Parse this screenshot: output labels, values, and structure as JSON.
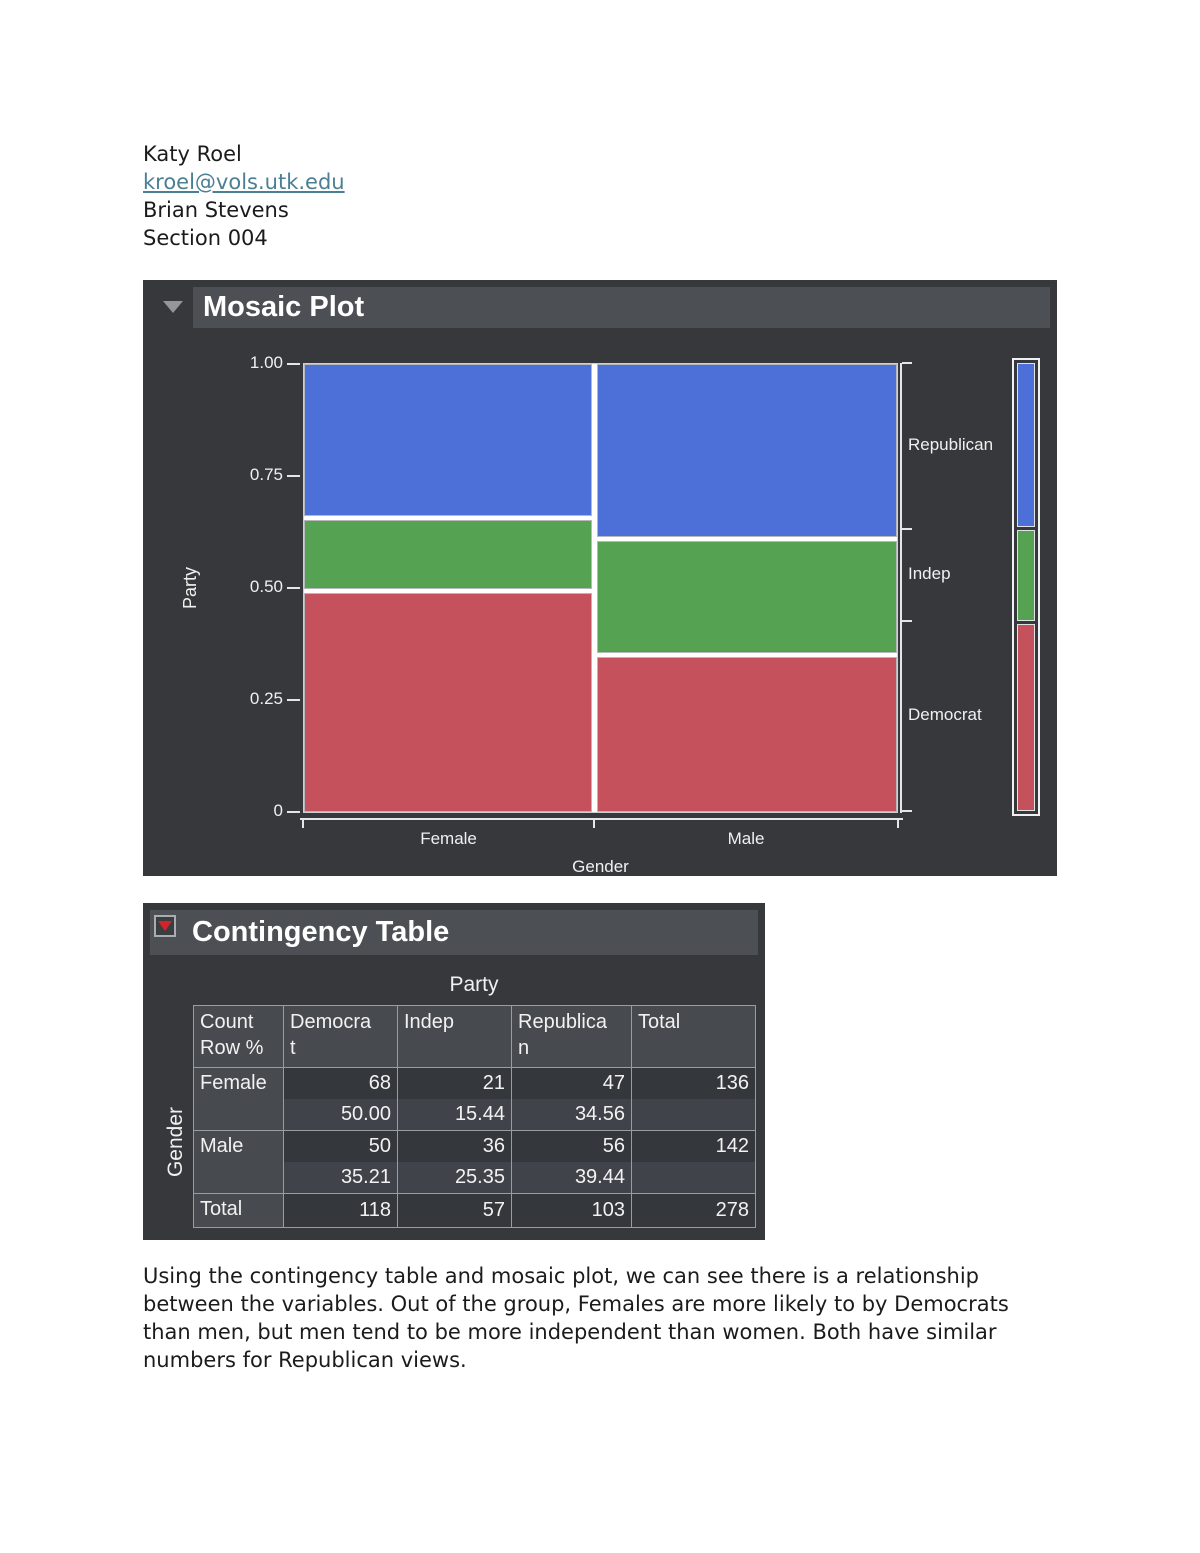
{
  "doc": {
    "author": "Katy Roel",
    "email": "kroel@vols.utk.edu",
    "instructor": "Brian Stevens",
    "section": "Section 004",
    "analysis_paragraph": "Using the contingency table and mosaic plot, we can see there is a relationship between the variables. Out of the group, Females are more likely to by Democrats than men, but men tend to be more independent than women. Both have similar numbers for Republican views."
  },
  "mosaic_panel": {
    "title": "Mosaic Plot",
    "disclosure_icon": "gray-triangle-down",
    "y_axis_label": "Party",
    "x_axis_label": "Gender",
    "colors": {
      "panel_bg": "#36383b",
      "titlebar_bg": "#4c4f53",
      "republican_blue": "#4d70d8",
      "indep_green": "#55a352",
      "democrat_red": "#c5515d"
    }
  },
  "chart_data": [
    {
      "type": "mosaic",
      "title": "Mosaic Plot",
      "xlabel": "Gender",
      "ylabel": "Party",
      "ylim": [
        0,
        1
      ],
      "y_ticks": [
        {
          "label": "1.00",
          "value": 1.0
        },
        {
          "label": "0.75",
          "value": 0.75
        },
        {
          "label": "0.50",
          "value": 0.5
        },
        {
          "label": "0.25",
          "value": 0.25
        },
        {
          "label": "0",
          "value": 0.0
        }
      ],
      "x_categories": [
        "Female",
        "Male"
      ],
      "y_categories_top_to_bottom": [
        "Republican",
        "Indep",
        "Democrat"
      ],
      "column_totals": {
        "Female": 136,
        "Male": 142
      },
      "grand_total": 278,
      "cell_counts": {
        "Female": {
          "Democrat": 68,
          "Indep": 21,
          "Republican": 47
        },
        "Male": {
          "Democrat": 50,
          "Indep": 36,
          "Republican": 56
        }
      },
      "row_percent": {
        "Female": {
          "Democrat": 50.0,
          "Indep": 15.44,
          "Republican": 34.56
        },
        "Male": {
          "Democrat": 35.21,
          "Indep": 25.35,
          "Republican": 39.44
        }
      },
      "party_totals": {
        "Democrat": 118,
        "Indep": 57,
        "Republican": 103
      },
      "colors": {
        "Republican": "#4d70d8",
        "Indep": "#55a352",
        "Democrat": "#c5515d"
      },
      "legend_position": "right"
    },
    {
      "type": "table",
      "title": "Contingency Table",
      "col_group": "Party",
      "row_group": "Gender",
      "columns": [
        "Democrat",
        "Indep",
        "Republican",
        "Total"
      ],
      "rows": [
        {
          "label": "Female",
          "count": [
            68,
            21,
            47
          ],
          "row_percent": [
            50.0,
            15.44,
            34.56
          ],
          "total": 136
        },
        {
          "label": "Male",
          "count": [
            50,
            36,
            56
          ],
          "row_percent": [
            35.21,
            25.35,
            39.44
          ],
          "total": 142
        }
      ],
      "total_row": {
        "label": "Total",
        "values": [
          118,
          57,
          103,
          278
        ]
      }
    }
  ],
  "contingency_panel": {
    "title": "Contingency Table",
    "menu_icon": "red-triangle-down",
    "col_group_label": "Party",
    "row_group_label": "Gender",
    "corner": "Count\nRow %",
    "columns": [
      "Democrat",
      "Indep",
      "Republican",
      "Total"
    ],
    "rows": [
      {
        "label": "Female",
        "cells": [
          {
            "count": "68",
            "pct": "50.00"
          },
          {
            "count": "21",
            "pct": "15.44"
          },
          {
            "count": "47",
            "pct": "34.56"
          }
        ],
        "total": "136"
      },
      {
        "label": "Male",
        "cells": [
          {
            "count": "50",
            "pct": "35.21"
          },
          {
            "count": "36",
            "pct": "25.35"
          },
          {
            "count": "56",
            "pct": "39.44"
          }
        ],
        "total": "142"
      }
    ],
    "total_row": {
      "label": "Total",
      "values": [
        "118",
        "57",
        "103",
        "278"
      ]
    }
  }
}
